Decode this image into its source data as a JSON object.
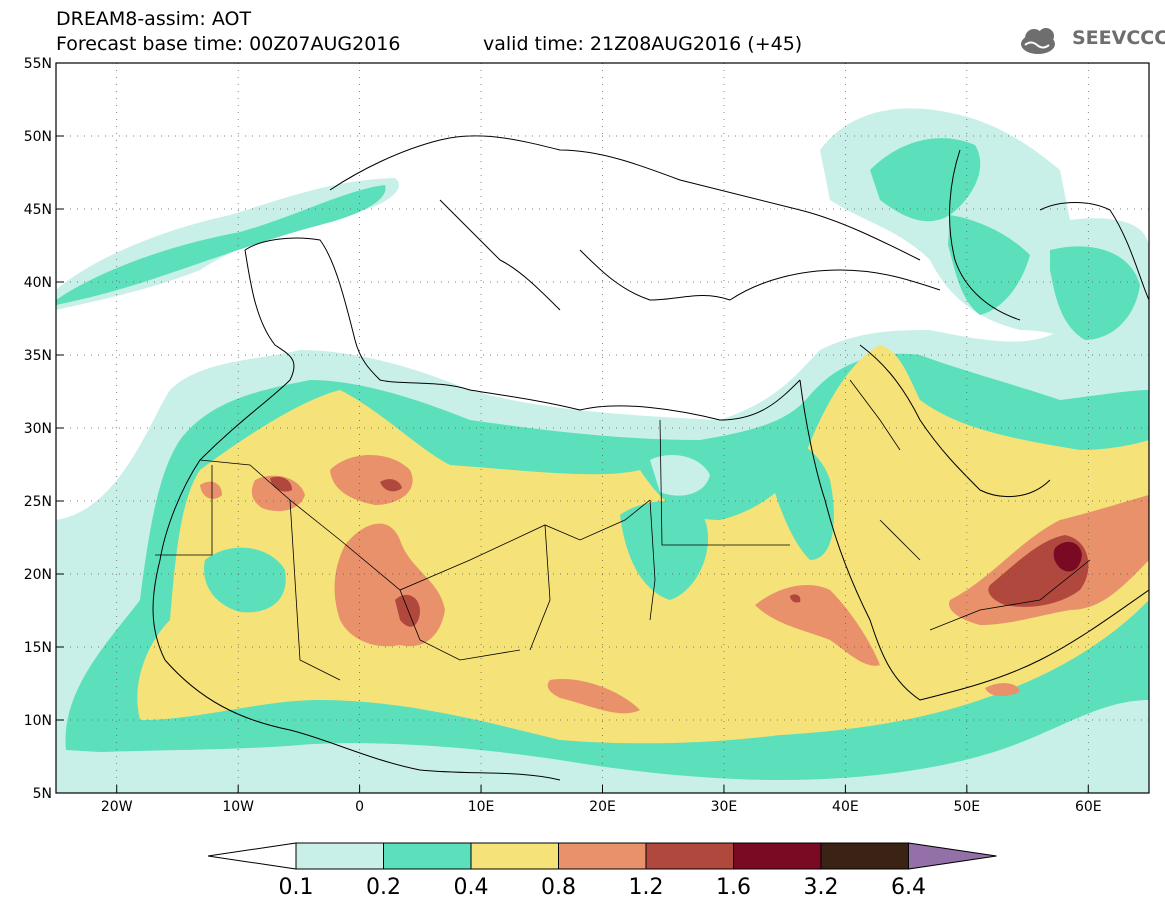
{
  "header": {
    "line1": "DREAM8-assim: AOT",
    "line2": "Forecast base time: 00Z07AUG2016",
    "valid": "valid time: 21Z08AUG2016 (+45)"
  },
  "logo": {
    "text": "SEEVCCC",
    "icon": "cloud-icon",
    "color": "#6e6e6e"
  },
  "map": {
    "lon_range": [
      -25,
      65
    ],
    "lat_range": [
      5,
      55
    ],
    "lon_ticks": [
      {
        "v": -20,
        "label": "20W"
      },
      {
        "v": -10,
        "label": "10W"
      },
      {
        "v": 0,
        "label": "0"
      },
      {
        "v": 10,
        "label": "10E"
      },
      {
        "v": 20,
        "label": "20E"
      },
      {
        "v": 30,
        "label": "30E"
      },
      {
        "v": 40,
        "label": "40E"
      },
      {
        "v": 50,
        "label": "50E"
      },
      {
        "v": 60,
        "label": "60E"
      }
    ],
    "lat_ticks": [
      {
        "v": 55,
        "label": "55N"
      },
      {
        "v": 50,
        "label": "50N"
      },
      {
        "v": 45,
        "label": "45N"
      },
      {
        "v": 40,
        "label": "40N"
      },
      {
        "v": 35,
        "label": "35N"
      },
      {
        "v": 30,
        "label": "30N"
      },
      {
        "v": 25,
        "label": "25N"
      },
      {
        "v": 20,
        "label": "20N"
      },
      {
        "v": 15,
        "label": "15N"
      },
      {
        "v": 10,
        "label": "10N"
      },
      {
        "v": 5,
        "label": "5N"
      }
    ]
  },
  "colorbar": {
    "colors": [
      "#c8f0e8",
      "#5ce0bc",
      "#f5e278",
      "#e8916a",
      "#b0483e",
      "#7a0a24",
      "#3a2314"
    ],
    "end_low": "#ffffff",
    "end_high": "#9470a8",
    "labels": [
      "0.1",
      "0.2",
      "0.4",
      "0.8",
      "1.2",
      "1.6",
      "3.2",
      "6.4"
    ]
  }
}
